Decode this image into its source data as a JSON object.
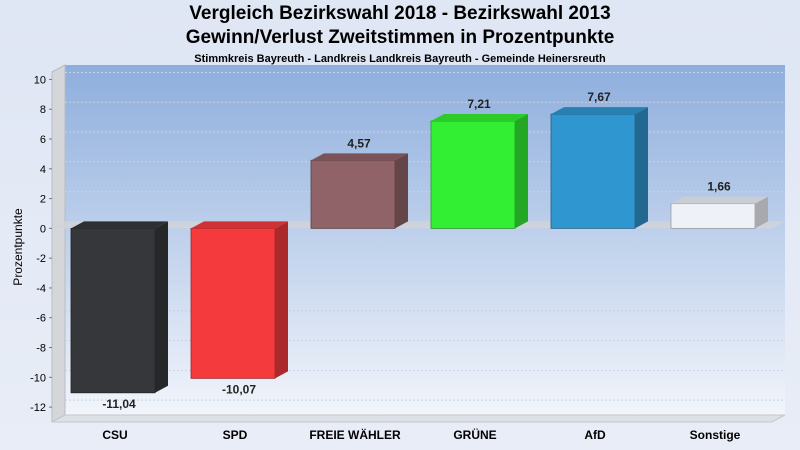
{
  "chart_data": {
    "type": "bar",
    "title": "Vergleich Bezirkswahl 2018 - Bezirkswahl 2013",
    "subtitle": "Gewinn/Verlust Zweitstimmen in Prozentpunkte",
    "subsubtitle": "Stimmkreis Bayreuth - Landkreis Landkreis Bayreuth - Gemeinde Heinersreuth",
    "xlabel": "",
    "ylabel": "Prozentpunkte",
    "ylim": [
      -13,
      10.5
    ],
    "yticks": [
      10,
      8,
      6,
      4,
      2,
      0,
      -2,
      -4,
      -6,
      -8,
      -10,
      -12
    ],
    "categories": [
      "CSU",
      "SPD",
      "FREIE WÄHLER",
      "GRÜNE",
      "AfD",
      "Sonstige"
    ],
    "values": [
      -11.04,
      -10.07,
      4.57,
      7.21,
      7.67,
      1.66
    ],
    "value_labels": [
      "-11,04",
      "-10,07",
      "4,57",
      "7,21",
      "7,67",
      "1,66"
    ],
    "colors": [
      "#35373b",
      "#f53a3d",
      "#8f6367",
      "#33ef33",
      "#2f96cf",
      "#eef2f8"
    ],
    "grid": true,
    "legend": "none"
  }
}
